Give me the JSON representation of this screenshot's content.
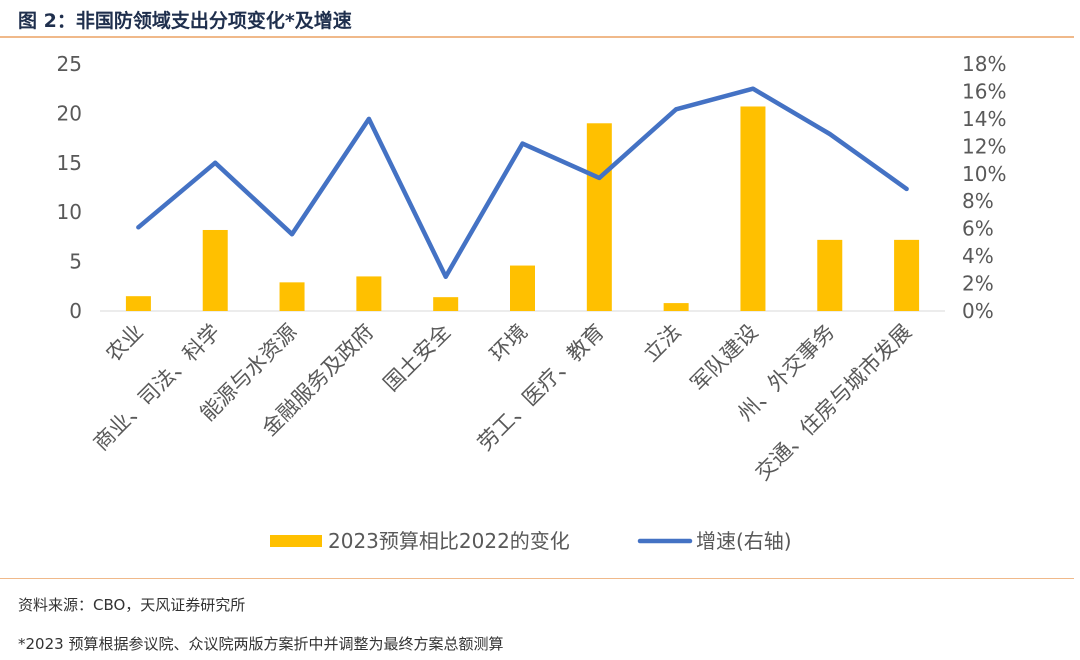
{
  "header": {
    "title": "图 2：非国防领域支出分项变化*及增速"
  },
  "footer": {
    "source": "资料来源：CBO，天风证券研究所",
    "note": "*2023 预算根据参议院、众议院两版方案折中并调整为最终方案总额测算"
  },
  "chart_data": {
    "type": "bar+line",
    "categories": [
      "农业",
      "商业、司法、科学",
      "能源与水资源",
      "金融服务及政府",
      "国土安全",
      "环境",
      "劳工、医疗、教育",
      "立法",
      "军队建设",
      "州、外交事务",
      "交通、住房与城市发展"
    ],
    "series": [
      {
        "name": "2023预算相比2022的变化",
        "type": "bar",
        "axis": "left",
        "color": "#FFC000",
        "values": [
          1.5,
          8.2,
          2.9,
          3.5,
          1.4,
          4.6,
          19.0,
          0.8,
          20.7,
          7.2,
          7.2
        ]
      },
      {
        "name": "增速(右轴)",
        "type": "line",
        "axis": "right",
        "color": "#4472C4",
        "values": [
          6.1,
          10.8,
          5.6,
          14.0,
          2.5,
          12.2,
          9.7,
          14.7,
          16.2,
          12.9,
          8.9
        ]
      }
    ],
    "y_left": {
      "min": 0,
      "max": 25,
      "ticks": [
        "0",
        "5",
        "10",
        "15",
        "20",
        "25"
      ]
    },
    "y_right": {
      "min": 0,
      "max": 18,
      "ticks": [
        "0%",
        "2%",
        "4%",
        "6%",
        "8%",
        "10%",
        "12%",
        "14%",
        "16%",
        "18%"
      ]
    },
    "grid": false,
    "legend_position": "bottom"
  }
}
